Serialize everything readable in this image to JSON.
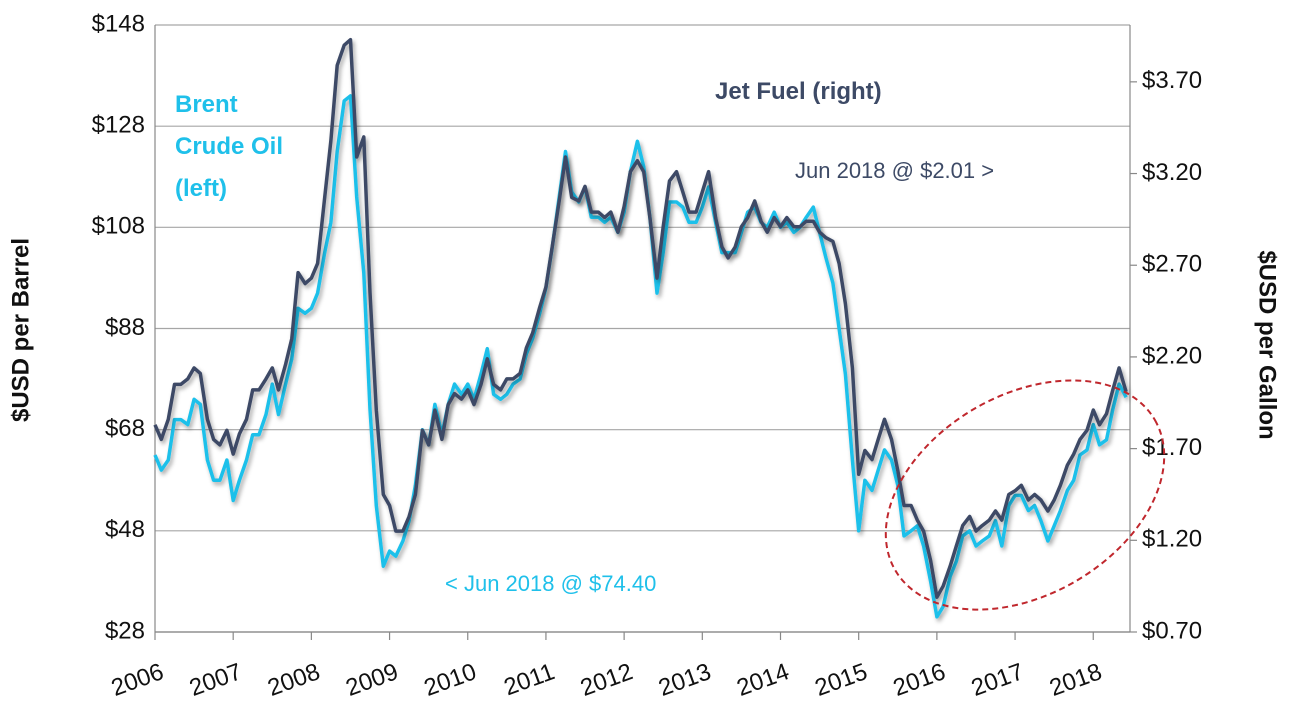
{
  "chart_data": {
    "type": "line",
    "y_label": "$USD per Barrel",
    "y2_label": "$USD per Gallon",
    "annotations": [
      "Jun 2018 @ $2.01 >",
      "< Jun 2018 @ $74.40"
    ],
    "x": [
      2006,
      2006.08,
      2006.17,
      2006.25,
      2006.33,
      2006.42,
      2006.5,
      2006.58,
      2006.67,
      2006.75,
      2006.83,
      2006.92,
      2007,
      2007.08,
      2007.17,
      2007.25,
      2007.33,
      2007.42,
      2007.5,
      2007.58,
      2007.67,
      2007.75,
      2007.83,
      2007.92,
      2008,
      2008.08,
      2008.17,
      2008.25,
      2008.33,
      2008.42,
      2008.5,
      2008.58,
      2008.67,
      2008.75,
      2008.83,
      2008.92,
      2009,
      2009.08,
      2009.17,
      2009.25,
      2009.33,
      2009.42,
      2009.5,
      2009.58,
      2009.67,
      2009.75,
      2009.83,
      2009.92,
      2010,
      2010.08,
      2010.17,
      2010.25,
      2010.33,
      2010.42,
      2010.5,
      2010.58,
      2010.67,
      2010.75,
      2010.83,
      2010.92,
      2011,
      2011.08,
      2011.17,
      2011.25,
      2011.33,
      2011.42,
      2011.5,
      2011.58,
      2011.67,
      2011.75,
      2011.83,
      2011.92,
      2012,
      2012.08,
      2012.17,
      2012.25,
      2012.33,
      2012.42,
      2012.5,
      2012.58,
      2012.67,
      2012.75,
      2012.83,
      2012.92,
      2013,
      2013.08,
      2013.17,
      2013.25,
      2013.33,
      2013.42,
      2013.5,
      2013.58,
      2013.67,
      2013.75,
      2013.83,
      2013.92,
      2014,
      2014.08,
      2014.17,
      2014.25,
      2014.33,
      2014.42,
      2014.5,
      2014.58,
      2014.67,
      2014.75,
      2014.83,
      2014.92,
      2015,
      2015.08,
      2015.17,
      2015.25,
      2015.33,
      2015.42,
      2015.5,
      2015.58,
      2015.67,
      2015.75,
      2015.83,
      2015.92,
      2016,
      2016.08,
      2016.17,
      2016.25,
      2016.33,
      2016.42,
      2016.5,
      2016.58,
      2016.67,
      2016.75,
      2016.83,
      2016.92,
      2017,
      2017.08,
      2017.17,
      2017.25,
      2017.33,
      2017.42,
      2017.5,
      2017.58,
      2017.67,
      2017.75,
      2017.83,
      2017.92,
      2018,
      2018.08,
      2018.17,
      2018.25,
      2018.33,
      2018.42
    ],
    "series": [
      {
        "name": "Brent Crude Oil (left)",
        "color": "#1fc0ea",
        "axis": "y",
        "values": [
          63,
          60,
          62,
          70,
          70,
          69,
          74,
          73,
          62,
          58,
          58,
          62,
          54,
          58,
          62,
          67,
          67,
          71,
          77,
          71,
          77,
          82,
          92,
          91,
          92,
          95,
          103,
          109,
          123,
          133,
          134,
          114,
          99,
          72,
          53,
          41,
          44,
          43,
          46,
          50,
          57,
          68,
          65,
          73,
          67,
          73,
          77,
          75,
          77,
          74,
          79,
          84,
          75,
          74,
          75,
          77,
          78,
          83,
          86,
          91,
          96,
          104,
          114,
          123,
          115,
          113,
          116,
          110,
          110,
          109,
          110,
          107,
          111,
          119,
          125,
          120,
          110,
          95,
          103,
          113,
          113,
          112,
          109,
          109,
          112,
          116,
          109,
          103,
          103,
          103,
          107,
          111,
          112,
          109,
          108,
          111,
          108,
          109,
          107,
          108,
          110,
          112,
          107,
          102,
          97,
          88,
          79,
          62,
          48,
          58,
          56,
          60,
          64,
          62,
          57,
          47,
          48,
          49,
          45,
          38,
          31,
          33,
          39,
          42,
          47,
          48,
          45,
          46,
          47,
          50,
          45,
          53,
          55,
          55,
          52,
          53,
          50,
          46,
          49,
          52,
          56,
          58,
          63,
          64,
          69,
          65,
          66,
          72,
          77,
          74.4
        ]
      },
      {
        "name": "Jet Fuel (right)",
        "color": "#3d4a66",
        "axis": "y2",
        "values": [
          1.83,
          1.75,
          1.86,
          2.05,
          2.05,
          2.08,
          2.14,
          2.11,
          1.86,
          1.75,
          1.72,
          1.8,
          1.67,
          1.78,
          1.86,
          2.02,
          2.02,
          2.08,
          2.14,
          2.02,
          2.16,
          2.3,
          2.66,
          2.6,
          2.63,
          2.71,
          3.07,
          3.38,
          3.79,
          3.9,
          3.93,
          3.29,
          3.4,
          2.55,
          1.91,
          1.45,
          1.39,
          1.25,
          1.25,
          1.33,
          1.45,
          1.8,
          1.72,
          1.91,
          1.75,
          1.94,
          2.0,
          1.97,
          2.02,
          1.94,
          2.05,
          2.19,
          2.05,
          2.02,
          2.08,
          2.08,
          2.11,
          2.25,
          2.33,
          2.47,
          2.58,
          2.8,
          3.05,
          3.29,
          3.07,
          3.05,
          3.13,
          2.99,
          2.99,
          2.96,
          2.99,
          2.88,
          3.02,
          3.21,
          3.27,
          3.21,
          2.96,
          2.63,
          2.91,
          3.16,
          3.21,
          3.1,
          2.99,
          2.99,
          3.1,
          3.21,
          2.96,
          2.8,
          2.74,
          2.8,
          2.91,
          2.96,
          3.05,
          2.94,
          2.88,
          2.96,
          2.91,
          2.96,
          2.91,
          2.91,
          2.94,
          2.94,
          2.88,
          2.85,
          2.83,
          2.71,
          2.49,
          2.14,
          1.56,
          1.69,
          1.64,
          1.75,
          1.86,
          1.75,
          1.58,
          1.39,
          1.39,
          1.31,
          1.25,
          1.09,
          0.89,
          0.95,
          1.06,
          1.17,
          1.28,
          1.33,
          1.25,
          1.28,
          1.31,
          1.36,
          1.31,
          1.45,
          1.47,
          1.5,
          1.42,
          1.45,
          1.42,
          1.36,
          1.42,
          1.5,
          1.61,
          1.67,
          1.75,
          1.8,
          1.91,
          1.83,
          1.89,
          2.02,
          2.14,
          2.01
        ]
      }
    ],
    "xlim": [
      2006,
      2018.47
    ],
    "xticks": [
      2006,
      2007,
      2008,
      2009,
      2010,
      2011,
      2012,
      2013,
      2014,
      2015,
      2016,
      2017,
      2018
    ],
    "ylim": [
      28,
      148
    ],
    "yticks": [
      {
        "value": 28,
        "label": "$28"
      },
      {
        "value": 48,
        "label": "$48"
      },
      {
        "value": 68,
        "label": "$68"
      },
      {
        "value": 88,
        "label": "$88"
      },
      {
        "value": 108,
        "label": "$108"
      },
      {
        "value": 128,
        "label": "$128"
      },
      {
        "value": 148,
        "label": "$148"
      }
    ],
    "y2lim": [
      0.7,
      4.01
    ],
    "y2ticks": [
      {
        "value": 0.7,
        "label": "$0.70"
      },
      {
        "value": 1.2,
        "label": "$1.20"
      },
      {
        "value": 1.7,
        "label": "$1.70"
      },
      {
        "value": 2.2,
        "label": "$2.20"
      },
      {
        "value": 2.7,
        "label": "$2.70"
      },
      {
        "value": 3.2,
        "label": "$3.20"
      },
      {
        "value": 3.7,
        "label": "$3.70"
      }
    ],
    "grid": true
  }
}
